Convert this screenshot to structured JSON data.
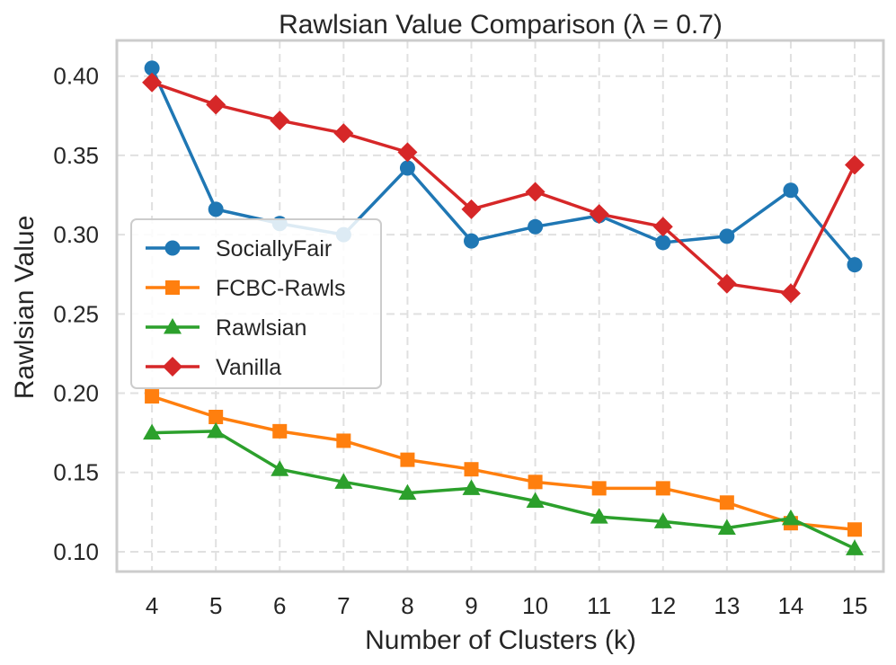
{
  "chart_data": {
    "type": "line",
    "title": "Rawlsian Value Comparison (λ = 0.7)",
    "xlabel": "Number of Clusters (k)",
    "ylabel": "Rawlsian Value",
    "x": [
      4,
      5,
      6,
      7,
      8,
      9,
      10,
      11,
      12,
      13,
      14,
      15
    ],
    "xlim": [
      3.45,
      15.45
    ],
    "ylim": [
      0.0875,
      0.4225
    ],
    "yticks": [
      0.1,
      0.15,
      0.2,
      0.25,
      0.3,
      0.35,
      0.4
    ],
    "ytick_labels": [
      "0.10",
      "0.15",
      "0.20",
      "0.25",
      "0.30",
      "0.35",
      "0.40"
    ],
    "grid": true,
    "legend_position": "center-left",
    "series": [
      {
        "name": "SociallyFair",
        "color": "#1f77b4",
        "marker": "circle",
        "values": [
          0.405,
          0.316,
          0.307,
          0.3,
          0.342,
          0.296,
          0.305,
          0.312,
          0.295,
          0.299,
          0.328,
          0.281
        ]
      },
      {
        "name": "FCBC-Rawls",
        "color": "#ff7f0e",
        "marker": "square",
        "values": [
          0.198,
          0.185,
          0.176,
          0.17,
          0.158,
          0.152,
          0.144,
          0.14,
          0.14,
          0.131,
          0.118,
          0.114
        ]
      },
      {
        "name": "Rawlsian",
        "color": "#2ca02c",
        "marker": "triangle",
        "values": [
          0.175,
          0.176,
          0.152,
          0.144,
          0.137,
          0.14,
          0.132,
          0.122,
          0.119,
          0.115,
          0.121,
          0.102
        ]
      },
      {
        "name": "Vanilla",
        "color": "#d62728",
        "marker": "diamond",
        "values": [
          0.396,
          0.382,
          0.372,
          0.364,
          0.352,
          0.316,
          0.327,
          0.313,
          0.305,
          0.269,
          0.263,
          0.344
        ]
      }
    ]
  }
}
